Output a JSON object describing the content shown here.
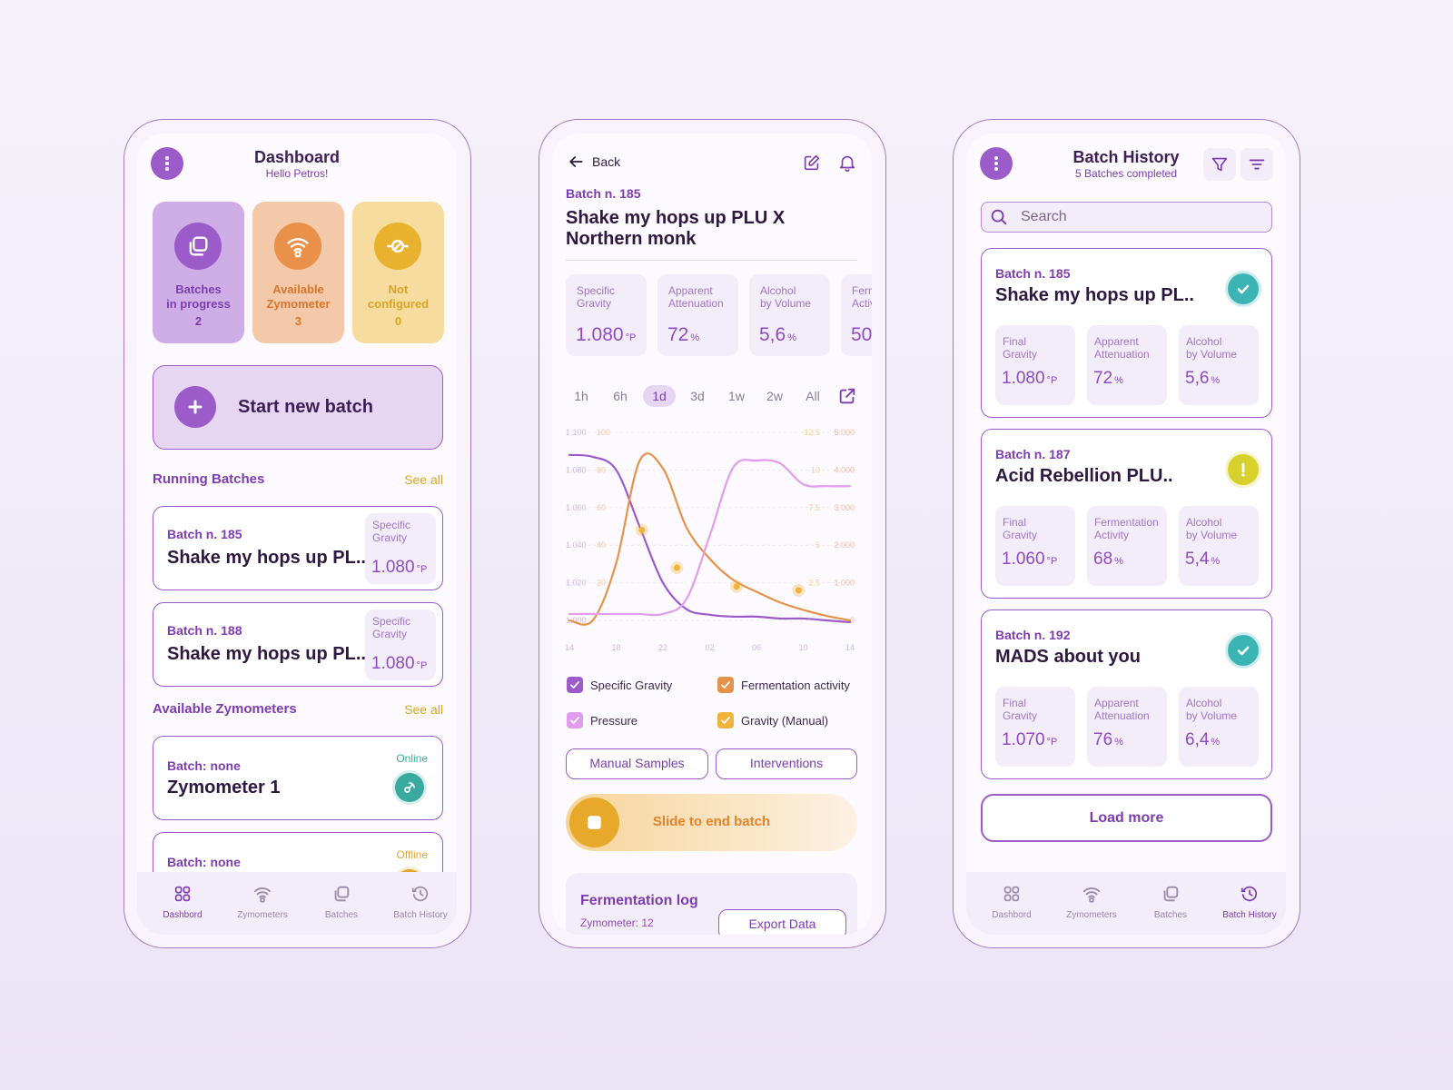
{
  "nav": [
    "Dashbord",
    "Zymometers",
    "Batches",
    "Batch History"
  ],
  "dashboard": {
    "title": "Dashboard",
    "subtitle": "Hello Petros!",
    "nav_active": 0,
    "tiles": [
      {
        "label": [
          "Batches",
          "in progress"
        ],
        "count": 2,
        "color": "#9b5bc9",
        "text_color": "#7d3db0",
        "background": "#cfaee8",
        "icon": "stack"
      },
      {
        "label": [
          "Available",
          "Zymometer"
        ],
        "count": 3,
        "color": "#e9914a",
        "text_color": "#d9752c",
        "background": "#f3c9a9",
        "icon": "wifi"
      },
      {
        "label": [
          "Not",
          "configured"
        ],
        "count": 0,
        "color": "#e8b22f",
        "text_color": "#d9a520",
        "background": "#f6dc9f",
        "icon": "noconf"
      }
    ],
    "start_button": "Start new batch",
    "running": {
      "heading": "Running Batches",
      "see_all": "See all",
      "items": [
        {
          "batch": "Batch n. 185",
          "name": "Shake my hops up PL..",
          "stat": {
            "label": [
              "Specific",
              "Gravity"
            ],
            "value": "1.080",
            "unit": "°P"
          }
        },
        {
          "batch": "Batch n. 188",
          "name": "Shake my hops up PL..",
          "stat": {
            "label": [
              "Specific",
              "Gravity"
            ],
            "value": "1.080",
            "unit": "°P"
          }
        }
      ]
    },
    "zymometers": {
      "heading": "Available Zymometers",
      "see_all": "See all",
      "items": [
        {
          "batch": "Batch: none",
          "name": "Zymometer 1",
          "status": "Online",
          "color": "#3aa9a0"
        },
        {
          "batch": "Batch: none",
          "status": "Offline",
          "color": "#e0a62a"
        }
      ]
    }
  },
  "detail": {
    "back": "Back",
    "batch": "Batch n. 185",
    "name": "Shake my hops up PLU X Northern monk",
    "stats": [
      {
        "label": [
          "Specific",
          "Gravity"
        ],
        "value": "1.080",
        "unit": "°P"
      },
      {
        "label": [
          "Apparent",
          "Attenuation"
        ],
        "value": "72",
        "unit": "%"
      },
      {
        "label": [
          "Alcohol",
          "by Volume"
        ],
        "value": "5,6",
        "unit": "%"
      },
      {
        "label": [
          "Fermentation",
          "Activity"
        ],
        "value": "50"
      }
    ],
    "ranges": [
      "1h",
      "6h",
      "1d",
      "3d",
      "1w",
      "2w",
      "All"
    ],
    "active_range": 2,
    "chart": {
      "type": "line",
      "grid": true,
      "x": [
        0,
        2,
        4,
        6,
        8,
        10,
        12,
        14,
        16,
        18,
        20,
        22,
        24
      ],
      "xlim": [
        0,
        24
      ],
      "xticks": [
        {
          "value": 0,
          "label": "14"
        },
        {
          "value": 4,
          "label": "18"
        },
        {
          "value": 8,
          "label": "22"
        },
        {
          "value": 12,
          "label": "02"
        },
        {
          "value": 16,
          "label": "06"
        },
        {
          "value": 20,
          "label": "10"
        },
        {
          "value": 24,
          "label": "14"
        }
      ],
      "ylim": [
        1.0,
        1.1
      ],
      "yticks": [
        {
          "value": 1.1,
          "label": "1.100"
        },
        {
          "value": 1.08,
          "label": "1.080"
        },
        {
          "value": 1.06,
          "label": "1.060"
        },
        {
          "value": 1.04,
          "label": "1.040"
        },
        {
          "value": 1.02,
          "label": "1.020"
        },
        {
          "value": 1.0,
          "label": "1.000"
        }
      ],
      "y2lim": [
        0,
        100
      ],
      "y2ticks": [
        100,
        80,
        60,
        40,
        20
      ],
      "y3lim": [
        0,
        12.5
      ],
      "y3ticks": [
        12.5,
        10,
        7.5,
        5,
        2.5
      ],
      "y4lim": [
        0,
        5000
      ],
      "y4ticks": [
        {
          "value": 5000,
          "label": "5.000"
        },
        {
          "value": 4000,
          "label": "4.000"
        },
        {
          "value": 3000,
          "label": "3.000"
        },
        {
          "value": 2000,
          "label": "2.000"
        },
        {
          "value": 1000,
          "label": "1.000"
        },
        0
      ],
      "series": [
        {
          "name": "Specific Gravity",
          "color": "#9b5bc9",
          "axis": "y",
          "values": [
            1.088,
            1.087,
            1.08,
            1.05,
            1.02,
            1.006,
            1.003,
            1.002,
            1.002,
            1.001,
            1.001,
            1.0,
            0.999
          ]
        },
        {
          "name": "Fermentation activity",
          "color": "#e5924a",
          "axis": "y3",
          "values": [
            0,
            0,
            3.8,
            10.6,
            10.1,
            6.2,
            4.1,
            2.7,
            1.9,
            1.2,
            0.7,
            0.3,
            0
          ]
        },
        {
          "name": "Pressure",
          "color": "#e29cee",
          "axis": "y4",
          "values": [
            170,
            170,
            170,
            170,
            170,
            560,
            2250,
            4060,
            4250,
            4180,
            3620,
            3570,
            3570
          ]
        },
        {
          "name": "Gravity (Manual)",
          "color": "#f0b43a",
          "axis": "y",
          "type": "scatter",
          "x": [
            6.2,
            9.2,
            14.3,
            19.6
          ],
          "values": [
            1.048,
            1.028,
            1.018,
            1.016
          ]
        }
      ]
    },
    "buttons": [
      "Manual Samples",
      "Interventions"
    ],
    "slide": "Slide to end batch",
    "log": {
      "title": "Fermentation log",
      "zymometer": "Zymometer: 12",
      "export": "Export Data"
    }
  },
  "history": {
    "title": "Batch History",
    "subtitle": "5 Batches completed",
    "nav_active": 3,
    "search": "Search",
    "cards": [
      {
        "batch": "Batch n. 185",
        "name": "Shake my hops up PL..",
        "icon": "check",
        "color": "#3cb4b4",
        "stats": [
          {
            "label": [
              "Final",
              "Gravity"
            ],
            "value": "1.080",
            "unit": "°P"
          },
          {
            "label": [
              "Apparent",
              "Attenuation"
            ],
            "value": "72",
            "unit": "%"
          },
          {
            "label": [
              "Alcohol",
              "by Volume"
            ],
            "value": "5,6",
            "unit": "%"
          }
        ]
      },
      {
        "batch": "Batch n. 187",
        "name": "Acid Rebellion PLU..",
        "icon": "alert",
        "color": "#d8d02c",
        "stats": [
          {
            "label": [
              "Final",
              "Gravity"
            ],
            "value": "1.060",
            "unit": "°P"
          },
          {
            "label": [
              "Fermentation",
              "Activity"
            ],
            "value": "68",
            "unit": "%"
          },
          {
            "label": [
              "Alcohol",
              "by Volume"
            ],
            "value": "5,4",
            "unit": "%"
          }
        ]
      },
      {
        "batch": "Batch n. 192",
        "name": "MADS about you",
        "icon": "check",
        "color": "#3cb4b4",
        "stats": [
          {
            "label": [
              "Final",
              "Gravity"
            ],
            "value": "1.070",
            "unit": "°P"
          },
          {
            "label": [
              "Apparent",
              "Attenuation"
            ],
            "value": "76",
            "unit": "%"
          },
          {
            "label": [
              "Alcohol",
              "by Volume"
            ],
            "value": "6,4",
            "unit": "%"
          }
        ]
      }
    ],
    "load_more": "Load more"
  }
}
